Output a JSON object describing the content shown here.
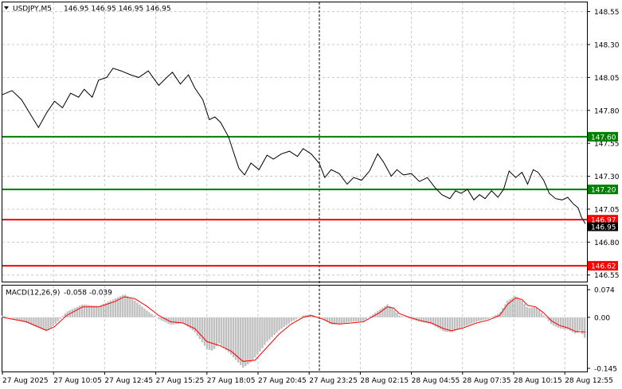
{
  "header": {
    "symbol_label": "USDJPY,M5",
    "ohlc_text": "146.95 146.95 146.95 146.95"
  },
  "macd_header": {
    "label": "MACD(12,26,9)",
    "values_text": "-0.058 -0.039"
  },
  "colors": {
    "background": "#ffffff",
    "grid": "#c8c8c8",
    "price_line": "#000000",
    "support_green": "#008000",
    "resistance_red": "#ff0000",
    "macd_hist": "#c0c0c0",
    "macd_signal": "#ff0000",
    "current_price_bg": "#000000"
  },
  "chart_data": [
    {
      "type": "line",
      "title": "USDJPY,M5",
      "ylim": [
        146.5,
        148.62
      ],
      "y_ticks": [
        "148.55",
        "148.30",
        "148.05",
        "147.80",
        "147.55",
        "147.30",
        "147.05",
        "146.80",
        "146.55"
      ],
      "x_ticks": [
        "27 Aug 2025",
        "27 Aug 10:05",
        "27 Aug 12:45",
        "27 Aug 15:25",
        "27 Aug 18:05",
        "27 Aug 20:45",
        "27 Aug 23:25",
        "28 Aug 02:15",
        "28 Aug 04:55",
        "28 Aug 07:35",
        "28 Aug 10:15",
        "28 Aug 12:55"
      ],
      "grid": true,
      "current_price": "146.95",
      "levels": [
        {
          "label": "147.60",
          "value": 147.6,
          "color": "green"
        },
        {
          "label": "147.20",
          "value": 147.2,
          "color": "green"
        },
        {
          "label": "146.97",
          "value": 146.97,
          "color": "red"
        },
        {
          "label": "146.62",
          "value": 146.62,
          "color": "red"
        }
      ],
      "series": [
        {
          "x_index": [
            0,
            12,
            24,
            36,
            45,
            55,
            65,
            75,
            85,
            95,
            102,
            112,
            120,
            130,
            138,
            148,
            160,
            170,
            182,
            195,
            205,
            212,
            222,
            232,
            240,
            250,
            258,
            265,
            272,
            282,
            290,
            295,
            302,
            310,
            320,
            330,
            338,
            348,
            358,
            368,
            375,
            385,
            395,
            402,
            410,
            420,
            430,
            438,
            448,
            458,
            468,
            475,
            485,
            492,
            500,
            510,
            520,
            530,
            540,
            548,
            558,
            565,
            572,
            580,
            588,
            595,
            602,
            610,
            618,
            625,
            632,
            640,
            648,
            655,
            662,
            668,
            675,
            682,
            690,
            698,
            705,
            712,
            718,
            722,
            727
          ],
          "price": [
            147.92,
            147.95,
            147.88,
            147.76,
            147.67,
            147.78,
            147.87,
            147.82,
            147.93,
            147.9,
            147.96,
            147.9,
            148.03,
            148.05,
            148.12,
            148.1,
            148.07,
            148.05,
            148.1,
            147.99,
            148.05,
            148.09,
            148.0,
            148.07,
            147.97,
            147.88,
            147.73,
            147.75,
            147.71,
            147.6,
            147.45,
            147.36,
            147.31,
            147.4,
            147.35,
            147.46,
            147.43,
            147.47,
            147.49,
            147.45,
            147.51,
            147.47,
            147.4,
            147.29,
            147.35,
            147.32,
            147.24,
            147.29,
            147.27,
            147.34,
            147.47,
            147.41,
            147.3,
            147.35,
            147.31,
            147.32,
            147.26,
            147.29,
            147.21,
            147.16,
            147.13,
            147.19,
            147.17,
            147.2,
            147.12,
            147.16,
            147.13,
            147.19,
            147.14,
            147.2,
            147.34,
            147.29,
            147.33,
            147.24,
            147.35,
            147.33,
            147.27,
            147.17,
            147.13,
            147.12,
            147.14,
            147.09,
            147.06,
            146.99,
            146.94
          ]
        }
      ]
    },
    {
      "type": "bar",
      "title": "MACD(12,26,9)",
      "ylim": [
        -0.145,
        0.085
      ],
      "y_ticks": [
        "0.074",
        "0.00",
        "-0.145"
      ],
      "series": [
        {
          "name": "MACD",
          "x_index": [
            0,
            30,
            55,
            65,
            80,
            100,
            120,
            140,
            152,
            165,
            180,
            195,
            210,
            225,
            240,
            255,
            262,
            270,
            285,
            300,
            310,
            318,
            330,
            345,
            360,
            375,
            385,
            400,
            410,
            420,
            435,
            450,
            470,
            480,
            488,
            495,
            505,
            520,
            535,
            550,
            560,
            575,
            590,
            605,
            620,
            630,
            640,
            648,
            655,
            665,
            675,
            685,
            695,
            705,
            715,
            720,
            727
          ],
          "values": [
            0.005,
            -0.015,
            -0.038,
            -0.02,
            0.015,
            0.035,
            0.03,
            0.05,
            0.062,
            0.045,
            0.018,
            -0.005,
            -0.02,
            -0.015,
            -0.04,
            -0.085,
            -0.09,
            -0.07,
            -0.1,
            -0.135,
            -0.12,
            -0.1,
            -0.065,
            -0.035,
            -0.012,
            0.005,
            0.008,
            -0.005,
            -0.02,
            -0.018,
            -0.012,
            -0.01,
            0.02,
            0.035,
            0.022,
            0.005,
            -0.002,
            -0.012,
            -0.018,
            -0.038,
            -0.04,
            -0.025,
            -0.012,
            -0.005,
            0.012,
            0.045,
            0.058,
            0.045,
            0.025,
            0.028,
            0.005,
            -0.02,
            -0.03,
            -0.033,
            -0.045,
            -0.035,
            -0.058
          ]
        },
        {
          "name": "Signal",
          "x_index": [
            0,
            30,
            55,
            65,
            80,
            100,
            120,
            140,
            152,
            165,
            180,
            195,
            210,
            225,
            240,
            255,
            270,
            285,
            300,
            315,
            330,
            345,
            360,
            375,
            385,
            400,
            410,
            420,
            435,
            450,
            470,
            480,
            488,
            495,
            505,
            520,
            535,
            550,
            560,
            575,
            590,
            605,
            620,
            630,
            640,
            648,
            655,
            665,
            675,
            685,
            695,
            705,
            715,
            727
          ],
          "values": [
            0.0,
            -0.012,
            -0.035,
            -0.025,
            0.005,
            0.028,
            0.028,
            0.042,
            0.055,
            0.05,
            0.03,
            0.005,
            -0.012,
            -0.015,
            -0.03,
            -0.065,
            -0.075,
            -0.09,
            -0.118,
            -0.115,
            -0.08,
            -0.045,
            -0.018,
            0.0,
            0.005,
            -0.005,
            -0.015,
            -0.018,
            -0.015,
            -0.012,
            0.012,
            0.028,
            0.025,
            0.01,
            0.002,
            -0.008,
            -0.015,
            -0.03,
            -0.036,
            -0.028,
            -0.016,
            -0.008,
            0.005,
            0.035,
            0.052,
            0.048,
            0.032,
            0.028,
            0.012,
            -0.01,
            -0.022,
            -0.028,
            -0.038,
            -0.039
          ]
        }
      ]
    }
  ]
}
